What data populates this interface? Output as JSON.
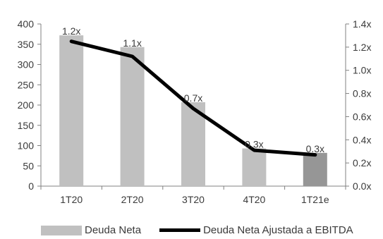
{
  "chart_data": {
    "type": "bar",
    "categories": [
      "1T20",
      "2T20",
      "3T20",
      "4T20",
      "1T21e"
    ],
    "series": [
      {
        "name": "Deuda Neta",
        "kind": "bar",
        "axis": "left",
        "values": [
          372,
          343,
          207,
          93,
          82
        ],
        "colors": [
          "#c0c0c0",
          "#c0c0c0",
          "#c0c0c0",
          "#c0c0c0",
          "#969696"
        ]
      },
      {
        "name": "Deuda Neta Ajustada a EBITDA",
        "kind": "line",
        "axis": "right",
        "values": [
          1.25,
          1.12,
          0.67,
          0.31,
          0.27
        ],
        "color": "#000000"
      }
    ],
    "data_labels": [
      "1.2x",
      "1.1x",
      "0.7x",
      "0.3x",
      "0.3x"
    ],
    "y_left": {
      "ylim": [
        0,
        400
      ],
      "ticks": [
        "0",
        "50",
        "100",
        "150",
        "200",
        "250",
        "300",
        "350",
        "400"
      ]
    },
    "y_right": {
      "ylim": [
        0,
        1.4
      ],
      "ticks": [
        "0.0x",
        "0.2x",
        "0.4x",
        "0.6x",
        "0.8x",
        "1.0x",
        "1.2x",
        "1.4x"
      ]
    },
    "legend_position": "bottom",
    "grid": false
  },
  "legend": {
    "bar_label": "Deuda Neta",
    "line_label": "Deuda Neta Ajustada a EBITDA"
  }
}
